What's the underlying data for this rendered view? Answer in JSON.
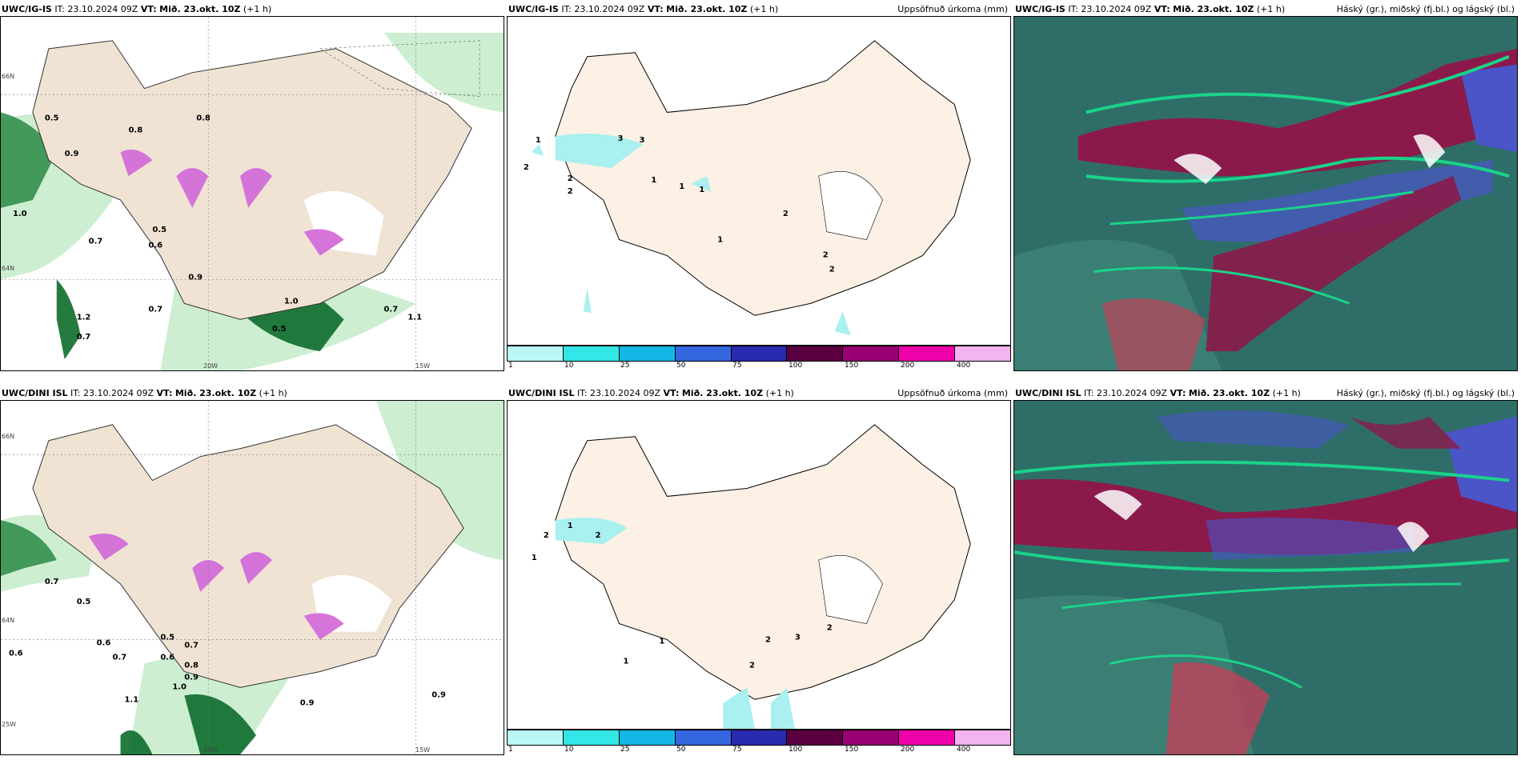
{
  "panels": [
    {
      "model": "UWC/IG-IS",
      "it_label": "IT:",
      "it": "23.10.2024 09Z",
      "vt_label": "VT:",
      "vt": "Mið. 23.okt. 10Z",
      "offset": "(+1 h)",
      "right_title": ""
    },
    {
      "model": "UWC/IG-IS",
      "it_label": "IT:",
      "it": "23.10.2024 09Z",
      "vt_label": "VT:",
      "vt": "Mið. 23.okt. 10Z",
      "offset": "(+1 h)",
      "right_title": "Uppsöfnuð úrkoma (mm)"
    },
    {
      "model": "UWC/IG-IS",
      "it_label": "IT:",
      "it": "23.10.2024 09Z",
      "vt_label": "VT:",
      "vt": "Mið. 23.okt. 10Z",
      "offset": "(+1 h)",
      "right_title": "Háský (gr.), miðský (fj.bl.) og lágský (bl.)"
    },
    {
      "model": "UWC/DINI ISL",
      "it_label": "IT:",
      "it": "23.10.2024 09Z",
      "vt_label": "VT:",
      "vt": "Mið. 23.okt. 10Z",
      "offset": "(+1 h)",
      "right_title": ""
    },
    {
      "model": "UWC/DINI ISL",
      "it_label": "IT:",
      "it": "23.10.2024 09Z",
      "vt_label": "VT:",
      "vt": "Mið. 23.okt. 10Z",
      "offset": "(+1 h)",
      "right_title": "Uppsöfnuð úrkoma (mm)"
    },
    {
      "model": "UWC/DINI ISL",
      "it_label": "IT:",
      "it": "23.10.2024 09Z",
      "vt_label": "VT:",
      "vt": "Mið. 23.okt. 10Z",
      "offset": "(+1 h)",
      "right_title": "Háský (gr.), miðský (fj.bl.) og lágský (bl.)"
    }
  ],
  "precip_scale": {
    "ticks": [
      "1",
      "10",
      "25",
      "50",
      "75",
      "100",
      "150",
      "200",
      "400"
    ],
    "colors": [
      "#b9f7f7",
      "#33e6e6",
      "#12b7e6",
      "#3466e0",
      "#2a2ab0",
      "#5a0040",
      "#990073",
      "#ee00aa",
      "#f2b3f0"
    ]
  },
  "map_tags": {
    "lat_66": "66N",
    "lat_64": "64N",
    "lon_20": "20W",
    "lon_15": "15W",
    "lon_25": "25W"
  },
  "labels_top_left": [
    "0.5",
    "1.0",
    "0.9",
    "0.6",
    "0.7",
    "0.8",
    "0.5",
    "0.7",
    "1.2",
    "0.7",
    "0.9",
    "0.5",
    "1.0",
    "0.8",
    "0.7",
    "1.1"
  ],
  "labels_bottom_left": [
    "0.6",
    "0.7",
    "0.5",
    "0.6",
    "0.7",
    "0.8",
    "0.7",
    "0.9",
    "1.1",
    "0.9",
    "0.6",
    "0.5",
    "1.0",
    "0.9"
  ],
  "labels_top_precip": [
    "1",
    "2",
    "3",
    "2",
    "2",
    "1",
    "3",
    "1",
    "1",
    "2",
    "1",
    "2",
    "2"
  ],
  "labels_bottom_precip": [
    "1",
    "2",
    "2",
    "1",
    "1",
    "2",
    "3",
    "2",
    "1",
    "2"
  ],
  "colors": {
    "land": "#f0e3d4",
    "precip_land": "#fdf0e4",
    "green_light": "#cdeed1",
    "green_dark": "#0d6b2b",
    "magenta": "#d066d8",
    "cyan": "#a9f0f0",
    "cloud_bg": "#2f6e68",
    "cloud_red": "#8b1a4a",
    "cloud_blue": "#4a55c8",
    "cloud_green": "#1ad38a"
  }
}
